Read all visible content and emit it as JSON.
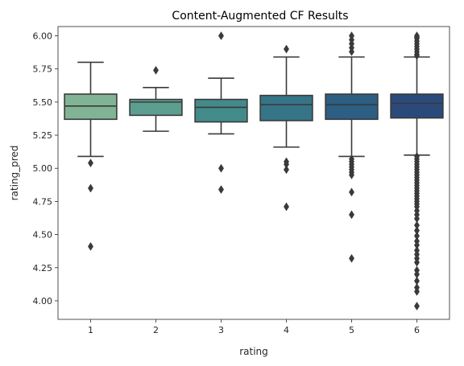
{
  "chart_data": {
    "type": "box",
    "title": "Content-Augmented CF Results",
    "xlabel": "rating",
    "ylabel": "rating_pred",
    "ylim": [
      3.86,
      6.07
    ],
    "yticks": [
      "4.00",
      "4.25",
      "4.50",
      "4.75",
      "5.00",
      "5.25",
      "5.50",
      "5.75",
      "6.00"
    ],
    "legend": "none",
    "grid": false,
    "categories": [
      "1",
      "2",
      "3",
      "4",
      "5",
      "6"
    ],
    "boxes": [
      {
        "category": "1",
        "color": "#80b495",
        "whisker_low": 5.09,
        "q1": 5.37,
        "median": 5.47,
        "q3": 5.56,
        "whisker_high": 5.8,
        "outliers": [
          5.04,
          4.85,
          4.41
        ]
      },
      {
        "category": "2",
        "color": "#5c9f91",
        "whisker_low": 5.28,
        "q1": 5.4,
        "median": 5.5,
        "q3": 5.52,
        "whisker_high": 5.61,
        "outliers": [
          5.74
        ]
      },
      {
        "category": "3",
        "color": "#438a8b",
        "whisker_low": 5.26,
        "q1": 5.35,
        "median": 5.46,
        "q3": 5.52,
        "whisker_high": 5.68,
        "outliers": [
          6.0,
          5.0,
          4.84
        ]
      },
      {
        "category": "4",
        "color": "#367487",
        "whisker_low": 5.16,
        "q1": 5.36,
        "median": 5.48,
        "q3": 5.55,
        "whisker_high": 5.84,
        "outliers": [
          5.9,
          5.05,
          5.03,
          4.99,
          4.71
        ]
      },
      {
        "category": "5",
        "color": "#2c5f83",
        "whisker_low": 5.09,
        "q1": 5.37,
        "median": 5.48,
        "q3": 5.56,
        "whisker_high": 5.84,
        "outliers": [
          6.0,
          5.97,
          5.94,
          5.91,
          5.88,
          5.07,
          5.05,
          5.03,
          5.01,
          4.99,
          4.97,
          4.95,
          4.82,
          4.65,
          4.32
        ]
      },
      {
        "category": "6",
        "color": "#2b4a7c",
        "whisker_low": 5.1,
        "q1": 5.38,
        "median": 5.49,
        "q3": 5.56,
        "whisker_high": 5.84,
        "outliers": [
          6.0,
          5.99,
          5.98,
          5.96,
          5.94,
          5.92,
          5.9,
          5.88,
          5.86,
          5.85,
          5.09,
          5.07,
          5.05,
          5.03,
          5.01,
          4.99,
          4.97,
          4.95,
          4.93,
          4.91,
          4.89,
          4.87,
          4.85,
          4.83,
          4.81,
          4.79,
          4.77,
          4.75,
          4.73,
          4.71,
          4.68,
          4.65,
          4.62,
          4.57,
          4.53,
          4.49,
          4.45,
          4.42,
          4.38,
          4.35,
          4.32,
          4.29,
          4.23,
          4.2,
          4.15,
          4.1,
          4.07,
          3.96
        ]
      }
    ]
  }
}
